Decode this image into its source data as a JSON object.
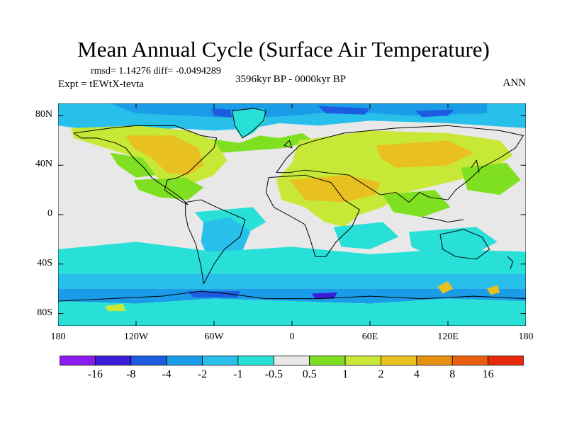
{
  "title": "Mean Annual Cycle (Surface Air Temperature)",
  "stats": "rmsd= 1.14276 diff= -0.0494289",
  "experiment": "Expt = tEWtX-tevta",
  "period": "3596kyr BP - 0000kyr BP",
  "season": "ANN",
  "lat_labels": [
    {
      "text": "80N",
      "lat": 80
    },
    {
      "text": "40N",
      "lat": 40
    },
    {
      "text": "0",
      "lat": 0
    },
    {
      "text": "40S",
      "lat": -40
    },
    {
      "text": "80S",
      "lat": -80
    }
  ],
  "lon_labels": [
    {
      "text": "180",
      "lon": -180
    },
    {
      "text": "120W",
      "lon": -120
    },
    {
      "text": "60W",
      "lon": -60
    },
    {
      "text": "0",
      "lon": 0
    },
    {
      "text": "60E",
      "lon": 60
    },
    {
      "text": "120E",
      "lon": 120
    },
    {
      "text": "180",
      "lon": 180
    }
  ],
  "colorbar": {
    "colors": [
      "#8a1cf0",
      "#3b1ad8",
      "#1c5ce0",
      "#1a9ce8",
      "#28c0ea",
      "#28e0d8",
      "#e8e8e8",
      "#7ee020",
      "#c8e838",
      "#e8c020",
      "#e89010",
      "#e86010",
      "#e82808"
    ],
    "labels": [
      "-16",
      "-8",
      "-4",
      "-2",
      "-1",
      "-0.5",
      "0.5",
      "1",
      "2",
      "4",
      "8",
      "16"
    ]
  },
  "map_colors": {
    "ocean": "#e8e8e8",
    "ocean_cool": "#28e0d8",
    "cold_light": "#28c0ea",
    "cold_mid": "#1a9ce8",
    "cold_strong": "#1c5ce0",
    "cold_deep": "#3b1ad8",
    "warm_light": "#7ee020",
    "warm_mid": "#c8e838",
    "warm_strong": "#e8c020",
    "warm_hot": "#e89010"
  },
  "extent": {
    "lon_min": -180,
    "lon_max": 180,
    "lat_min": -90,
    "lat_max": 90
  }
}
